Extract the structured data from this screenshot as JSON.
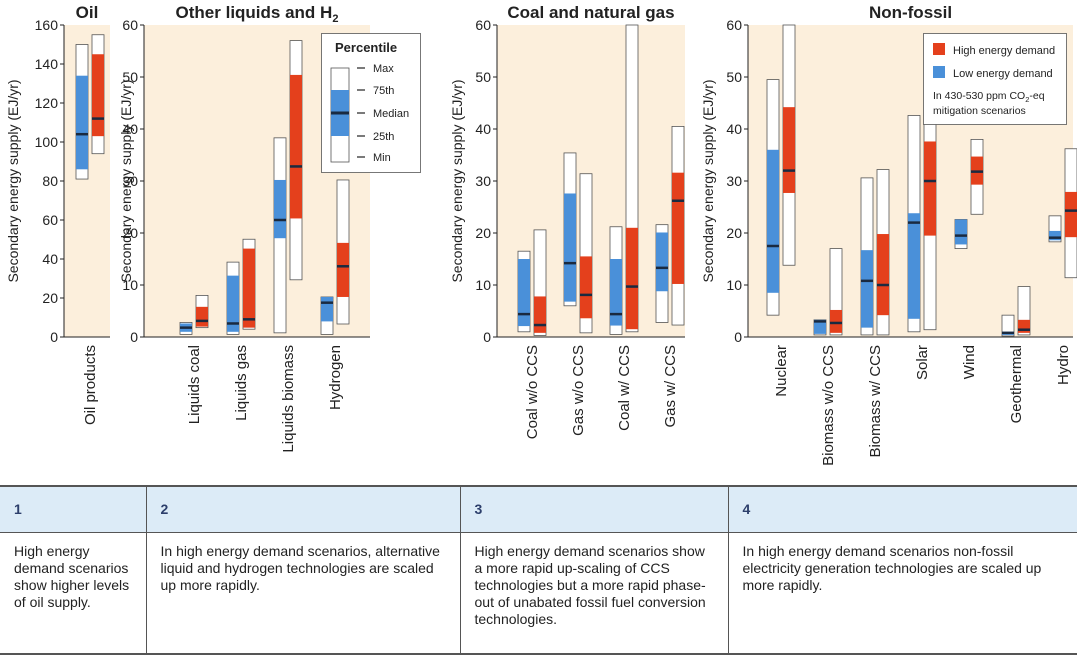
{
  "legend_percentile": {
    "title": "Percentile",
    "items": [
      "Max",
      "75th",
      "Median",
      "25th",
      "Min"
    ]
  },
  "legend_demand": {
    "high": "High energy demand",
    "low": "Low energy demand",
    "note_line1_a": "In 430-530 ppm CO",
    "note_line1_sub": "2",
    "note_line1_b": "-eq",
    "note_line2": "mitigation scenarios"
  },
  "colors": {
    "high": "#e4401c",
    "low": "#4a90d9",
    "panel_bg": "#fcefdc",
    "median": "#1a2a40"
  },
  "chart_data": [
    {
      "type": "box",
      "title": "Oil",
      "ylabel": "Secondary energy supply (EJ/yr)",
      "ylim": [
        0,
        160
      ],
      "yticks": [
        0,
        20,
        40,
        60,
        80,
        100,
        120,
        140,
        160
      ],
      "categories": [
        "Oil products"
      ],
      "series": [
        {
          "name": "Low energy demand",
          "min": [
            81
          ],
          "q25": [
            86
          ],
          "median": [
            104
          ],
          "q75": [
            134
          ],
          "max": [
            150
          ]
        },
        {
          "name": "High energy demand",
          "min": [
            94
          ],
          "q25": [
            103
          ],
          "median": [
            112
          ],
          "q75": [
            145
          ],
          "max": [
            155
          ]
        }
      ]
    },
    {
      "type": "box",
      "title_main": "Other liquids and H",
      "title_sub": "2",
      "ylabel": "Secondary energy supply (EJ/yr)",
      "ylim": [
        0,
        60
      ],
      "yticks": [
        0,
        10,
        20,
        30,
        40,
        50,
        60
      ],
      "categories": [
        "Liquids coal",
        "Liquids gas",
        "Liquids biomass",
        "Hydrogen"
      ],
      "series": [
        {
          "name": "Low energy demand",
          "min": [
            0.5,
            0.5,
            0.8,
            0.5
          ],
          "q25": [
            1,
            1,
            19,
            3
          ],
          "median": [
            1.8,
            2.6,
            22.5,
            6.6
          ],
          "q75": [
            2.6,
            11.8,
            30.2,
            7.7
          ],
          "max": [
            2.8,
            14.4,
            38.3,
            7.7
          ]
        },
        {
          "name": "High energy demand",
          "min": [
            1.8,
            1.5,
            11,
            2.5
          ],
          "q25": [
            2,
            1.8,
            22.8,
            7.7
          ],
          "median": [
            3.1,
            3.4,
            32.8,
            13.6
          ],
          "q75": [
            5.8,
            17,
            50.4,
            18.1
          ],
          "max": [
            8,
            18.8,
            57,
            30.2
          ]
        }
      ]
    },
    {
      "type": "box",
      "title": "Coal and natural gas",
      "ylabel": "Secondary energy supply (EJ/yr)",
      "ylim": [
        0,
        60
      ],
      "yticks": [
        0,
        10,
        20,
        30,
        40,
        50,
        60
      ],
      "categories": [
        "Coal w/o CCS",
        "Gas w/o CCS",
        "Coal w/ CCS",
        "Gas w/ CCS"
      ],
      "series": [
        {
          "name": "Low energy demand",
          "min": [
            1,
            6,
            0.5,
            2.8
          ],
          "q25": [
            2.1,
            6.8,
            2.2,
            8.8
          ],
          "median": [
            4.4,
            14.2,
            4.4,
            13.3
          ],
          "q75": [
            15,
            27.6,
            15,
            20.1
          ],
          "max": [
            16.5,
            35.4,
            21.2,
            21.6
          ]
        },
        {
          "name": "High energy demand",
          "min": [
            0.3,
            0.8,
            1,
            2.3
          ],
          "q25": [
            0.8,
            3.6,
            1.5,
            10.2
          ],
          "median": [
            2.3,
            8.1,
            9.7,
            26.2
          ],
          "q75": [
            7.8,
            15.5,
            21,
            31.6
          ],
          "max": [
            20.6,
            31.4,
            60,
            40.5
          ]
        }
      ]
    },
    {
      "type": "box",
      "title": "Non-fossil",
      "ylabel": "Secondary energy supply (EJ/yr)",
      "ylim": [
        0,
        60
      ],
      "yticks": [
        0,
        10,
        20,
        30,
        40,
        50,
        60
      ],
      "categories": [
        "Nuclear",
        "Biomass w/o CCS",
        "Biomass w/ CCS",
        "Solar",
        "Wind",
        "Geothermal",
        "Hydro"
      ],
      "series": [
        {
          "name": "Low energy demand",
          "min": [
            4.2,
            0.4,
            0.4,
            1,
            17,
            0.2,
            18.3
          ],
          "q25": [
            8.5,
            0.6,
            1.8,
            3.5,
            17.8,
            0.4,
            18.6
          ],
          "median": [
            17.5,
            3,
            10.8,
            22,
            19.5,
            0.8,
            19.1
          ],
          "q75": [
            36,
            3.3,
            16.7,
            23.8,
            22.6,
            1,
            20.4
          ],
          "max": [
            49.5,
            3.3,
            30.6,
            42.6,
            22.6,
            4.2,
            23.3
          ]
        },
        {
          "name": "High energy demand",
          "min": [
            13.8,
            0.4,
            0.4,
            1.4,
            23.6,
            0.4,
            11.4
          ],
          "q25": [
            27.7,
            0.8,
            4.2,
            19.5,
            29.3,
            0.8,
            19.2
          ],
          "median": [
            32,
            2.7,
            10,
            30,
            31.8,
            1.4,
            24.3
          ],
          "q75": [
            44.2,
            5.2,
            19.8,
            37.6,
            34.7,
            3.3,
            27.9
          ],
          "max": [
            60,
            17,
            32.2,
            52.3,
            38,
            9.7,
            36.2
          ]
        }
      ]
    }
  ],
  "table": {
    "numbers": [
      "1",
      "2",
      "3",
      "4"
    ],
    "texts": [
      "High energy demand scenarios show higher levels of oil supply.",
      "In high energy demand scenarios, alternative liquid and hydrogen technologies are scaled up more rapidly.",
      "High energy demand scenarios show a more rapid up-scaling of CCS technologies but a more rapid phase-out of unabated fossil fuel conversion technologies.",
      "In high energy demand scenarios non-fossil electricity generation technologies are scaled up more rapidly."
    ]
  }
}
